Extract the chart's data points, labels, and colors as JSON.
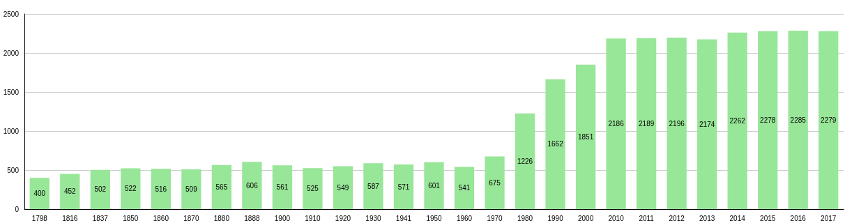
{
  "chart_data": {
    "type": "bar",
    "categories": [
      "1798",
      "1816",
      "1837",
      "1850",
      "1860",
      "1870",
      "1880",
      "1888",
      "1900",
      "1910",
      "1920",
      "1930",
      "1941",
      "1950",
      "1960",
      "1970",
      "1980",
      "1990",
      "2000",
      "2010",
      "2011",
      "2012",
      "2013",
      "2014",
      "2015",
      "2016",
      "2017"
    ],
    "values": [
      400,
      452,
      502,
      522,
      516,
      509,
      565,
      606,
      561,
      525,
      549,
      587,
      571,
      601,
      541,
      675,
      1226,
      1662,
      1851,
      2186,
      2189,
      2196,
      2174,
      2262,
      2278,
      2285,
      2279
    ],
    "color": "#98e698",
    "ylim": [
      0,
      2500
    ],
    "yticks": [
      0,
      500,
      1000,
      1500,
      2000,
      2500
    ],
    "grid": "y",
    "data_labels": true
  }
}
